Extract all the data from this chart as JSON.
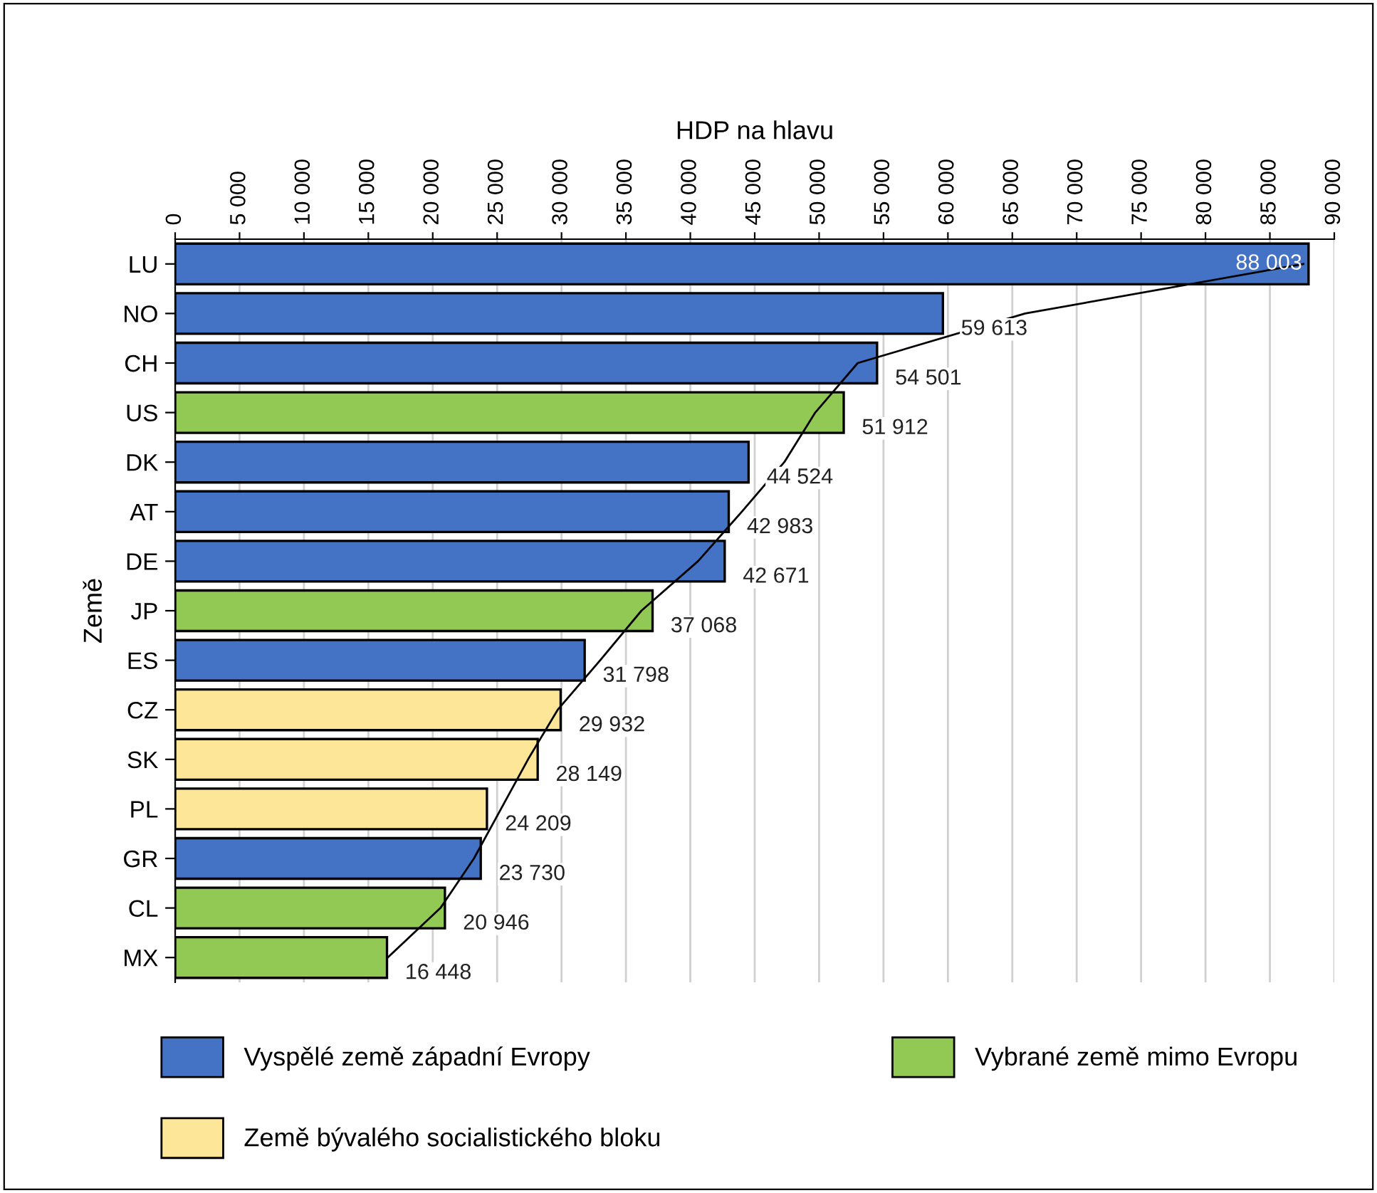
{
  "chart_data": {
    "type": "bar",
    "orientation": "horizontal",
    "xlabel": "HDP na hlavu",
    "ylabel": "Země",
    "categories": [
      "LU",
      "NO",
      "CH",
      "US",
      "DK",
      "AT",
      "DE",
      "JP",
      "ES",
      "CZ",
      "SK",
      "PL",
      "GR",
      "CL",
      "MX"
    ],
    "series": [
      {
        "name": "Vyspělé země západní Evropy",
        "color": "#4472c4",
        "values": [
          88003,
          59613,
          54501,
          null,
          44524,
          42983,
          42671,
          null,
          31798,
          null,
          null,
          null,
          23730,
          null,
          null
        ],
        "value_labels": [
          "88 003",
          "59 613",
          "54 501",
          null,
          "44 524",
          "42 983",
          "42 671",
          null,
          "31 798",
          null,
          null,
          null,
          "23 730",
          null,
          null
        ]
      },
      {
        "name": "Vybrané země mimo Evropu",
        "color": "#92c955",
        "values": [
          null,
          null,
          null,
          51912,
          null,
          null,
          null,
          37068,
          null,
          null,
          null,
          null,
          null,
          20946,
          16448
        ],
        "value_labels": [
          null,
          null,
          null,
          "51 912",
          null,
          null,
          null,
          "37 068",
          null,
          null,
          null,
          null,
          null,
          "20 946",
          "16 448"
        ]
      },
      {
        "name": "Země bývalého socialistického bloku",
        "color": "#fde698",
        "values": [
          null,
          null,
          null,
          null,
          null,
          null,
          null,
          null,
          null,
          29932,
          28149,
          24209,
          null,
          null,
          null
        ],
        "value_labels": [
          null,
          null,
          null,
          null,
          null,
          null,
          null,
          null,
          null,
          "29 932",
          "28 149",
          "24 209",
          null,
          null,
          null
        ]
      },
      {
        "type": "line",
        "color": "#000000",
        "values": [
          87600,
          66000,
          53000,
          49700,
          47300,
          44000,
          40600,
          36200,
          33000,
          29700,
          27400,
          25300,
          23200,
          20600,
          16500
        ]
      }
    ],
    "xlim": [
      0,
      90000
    ],
    "xticks": [
      0,
      {
        "value": 5000,
        "label": "5 000"
      },
      {
        "value": 10000,
        "label": "10 000"
      },
      {
        "value": 15000,
        "label": "15 000"
      },
      {
        "value": 20000,
        "label": "20 000"
      },
      {
        "value": 25000,
        "label": "25 000"
      },
      {
        "value": 30000,
        "label": "30 000"
      },
      {
        "value": 35000,
        "label": "35 000"
      },
      {
        "value": 40000,
        "label": "40 000"
      },
      {
        "value": 45000,
        "label": "45 000"
      },
      {
        "value": 50000,
        "label": "50 000"
      },
      {
        "value": 55000,
        "label": "55 000"
      },
      {
        "value": 60000,
        "label": "60 000"
      },
      {
        "value": 65000,
        "label": "65 000"
      },
      {
        "value": 70000,
        "label": "70 000"
      },
      {
        "value": 75000,
        "label": "75 000"
      },
      {
        "value": 80000,
        "label": "80 000"
      },
      {
        "value": 85000,
        "label": "85 000"
      },
      {
        "value": 90000,
        "label": "90 000"
      }
    ],
    "grid": "x",
    "legend": "bottom"
  }
}
